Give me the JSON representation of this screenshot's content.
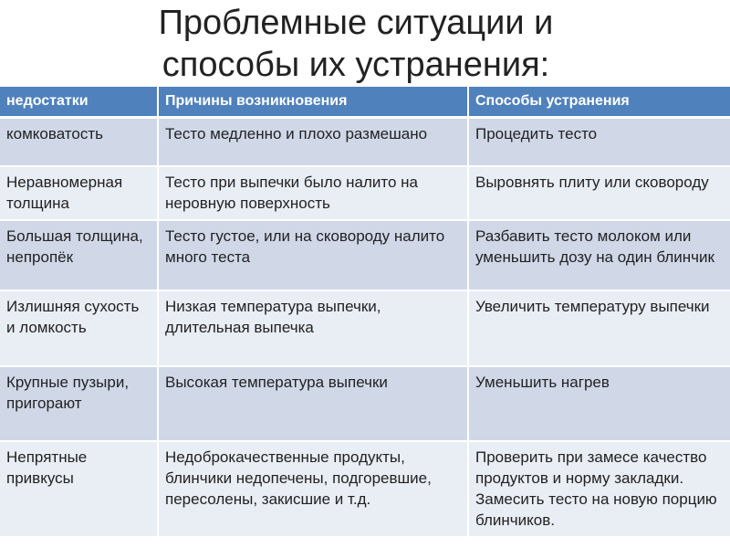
{
  "title": {
    "line1": "Проблемные ситуации и",
    "line2": "способы их устранения:"
  },
  "colors": {
    "header": "#4f81bd",
    "row_odd": "#d0d8e8",
    "row_even": "#e9edf4"
  },
  "table": {
    "headers": [
      "недостатки",
      "Причины возникновения",
      "Способы устранения"
    ],
    "rows": [
      [
        "комковатость",
        "Тесто  медленно и плохо размешано",
        "Процедить тесто"
      ],
      [
        "Неравномерная толщина",
        "Тесто при выпечки было налито на неровную поверхность",
        "Выровнять плиту или сковороду"
      ],
      [
        "Большая толщина, непропёк",
        "Тесто густое, или на сковороду налито много теста",
        "Разбавить тесто молоком или уменьшить дозу на один блинчик"
      ],
      [
        "Излишняя сухость и ломкость",
        "Низкая температура выпечки, длительная выпечка",
        "Увеличить температуру выпечки"
      ],
      [
        "Крупные пузыри, пригорают",
        "Высокая температура выпечки",
        "Уменьшить нагрев"
      ],
      [
        "Непрятные привкусы",
        "Недоброкачественные продукты, блинчики недопечены, подгоревшие, пересолены, закисшие и т.д.",
        "Проверить при замесе качество продуктов и норму закладки. Замесить тесто на новую порцию блинчиков."
      ]
    ]
  }
}
